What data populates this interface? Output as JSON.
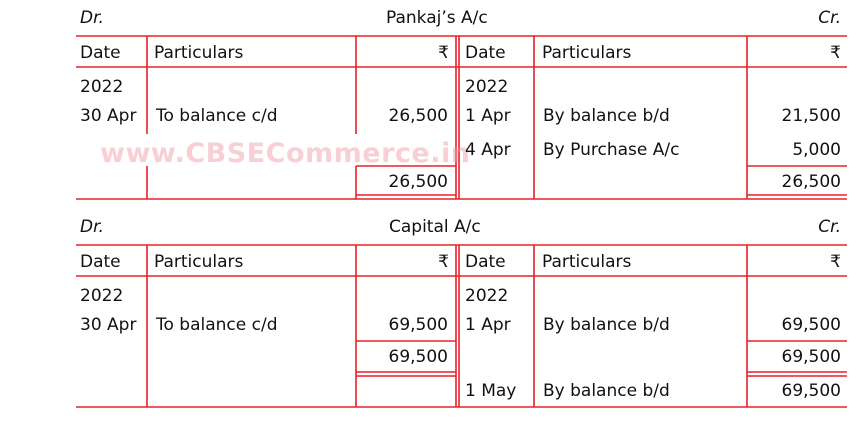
{
  "watermark": "www.CBSECommerce.in",
  "rule_color": "#e8202a",
  "accounts": [
    {
      "dr": "Dr.",
      "title": "Pankaj’s A/c",
      "cr": "Cr.",
      "headers": {
        "date": "Date",
        "particulars": "Particulars",
        "amount": "₹"
      },
      "debit": [
        {
          "date": "2022",
          "particulars": "",
          "amount": ""
        },
        {
          "date": "30 Apr",
          "particulars": "To balance c/d",
          "amount": "26,500"
        }
      ],
      "debit_total": "26,500",
      "credit": [
        {
          "date": "2022",
          "particulars": "",
          "amount": ""
        },
        {
          "date": "1 Apr",
          "particulars": "By balance b/d",
          "amount": "21,500"
        },
        {
          "date": "4 Apr",
          "particulars": "By Purchase A/c",
          "amount": "5,000"
        }
      ],
      "credit_total": "26,500"
    },
    {
      "dr": "Dr.",
      "title": "Capital A/c",
      "cr": "Cr.",
      "headers": {
        "date": "Date",
        "particulars": "Particulars",
        "amount": "₹"
      },
      "debit": [
        {
          "date": "2022",
          "particulars": "",
          "amount": ""
        },
        {
          "date": "30 Apr",
          "particulars": "To balance c/d",
          "amount": "69,500"
        }
      ],
      "debit_total": "69,500",
      "credit": [
        {
          "date": "2022",
          "particulars": "",
          "amount": ""
        },
        {
          "date": "1 Apr",
          "particulars": "By balance b/d",
          "amount": "69,500"
        }
      ],
      "credit_total": "69,500",
      "credit_after": {
        "date": "1 May",
        "particulars": "By balance b/d",
        "amount": "69,500"
      }
    }
  ]
}
